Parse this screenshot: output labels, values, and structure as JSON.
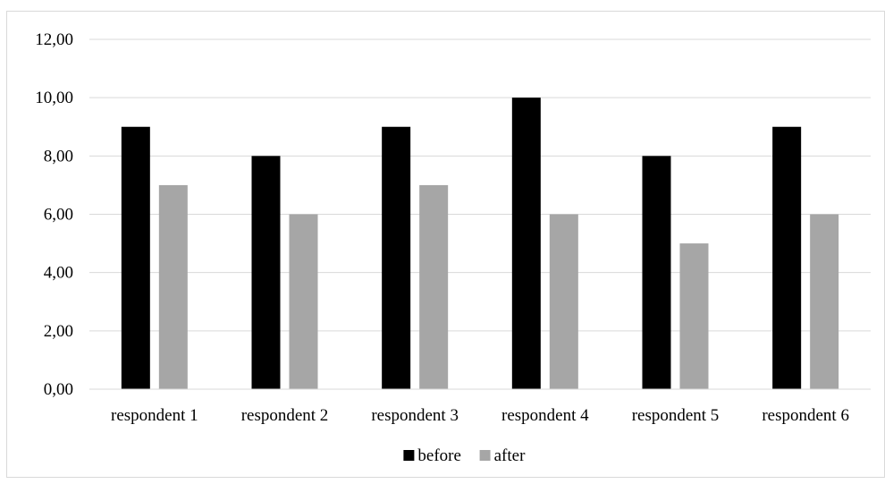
{
  "chart_data": {
    "type": "bar",
    "categories": [
      "respondent 1",
      "respondent 2",
      "respondent 3",
      "respondent 4",
      "respondent 5",
      "respondent 6"
    ],
    "series": [
      {
        "name": "before",
        "values": [
          9,
          8,
          9,
          10,
          8,
          9
        ],
        "color": "#000000"
      },
      {
        "name": "after",
        "values": [
          7,
          6,
          7,
          6,
          5,
          6
        ],
        "color": "#a6a6a6"
      }
    ],
    "ylim": [
      0,
      12
    ],
    "yticks": [
      "0,00",
      "2,00",
      "4,00",
      "6,00",
      "8,00",
      "10,00",
      "12,00"
    ],
    "grid": true,
    "gridColor": "#d9d9d9",
    "legend": "bottom-center"
  }
}
